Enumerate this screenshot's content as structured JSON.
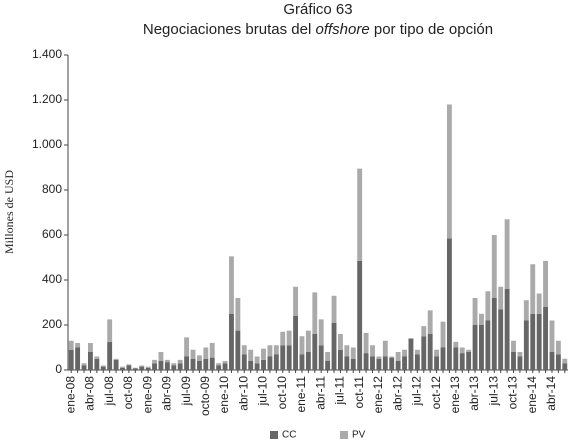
{
  "chart_data": {
    "type": "stacked_bar",
    "title": "Gráfico 63",
    "subtitle_parts": [
      "Negociaciones brutas del ",
      "offshore",
      " por tipo de opción"
    ],
    "y_label": "Millones de USD",
    "categories": [
      "ene-08",
      null,
      null,
      "abr-08",
      null,
      null,
      "jul-08",
      null,
      null,
      "oct-08",
      null,
      null,
      "ene-09",
      null,
      null,
      "abr-09",
      null,
      null,
      "jul-09",
      null,
      null,
      "octo-09",
      null,
      null,
      "ene-10",
      null,
      null,
      "abr-10",
      null,
      null,
      "jul-10",
      null,
      null,
      "oct-10",
      null,
      null,
      "ene-11",
      null,
      null,
      "abr-11",
      null,
      null,
      "jul-11",
      null,
      null,
      "oct-11",
      null,
      null,
      "ene-12",
      null,
      null,
      "abr-12",
      null,
      null,
      "jul-12",
      null,
      null,
      "oct-12",
      null,
      null,
      "ene-13",
      null,
      null,
      "abr-13",
      null,
      null,
      "jul-13",
      null,
      null,
      "oct-13",
      null,
      null,
      "ene-14",
      null,
      null,
      "abr-14",
      null,
      null
    ],
    "series": [
      {
        "name": "CC",
        "color": "#666666",
        "values": [
          90,
          100,
          20,
          80,
          50,
          15,
          125,
          45,
          10,
          20,
          8,
          15,
          10,
          30,
          40,
          35,
          20,
          30,
          60,
          50,
          40,
          50,
          55,
          20,
          30,
          250,
          175,
          70,
          40,
          30,
          45,
          60,
          70,
          110,
          110,
          240,
          70,
          80,
          160,
          110,
          40,
          210,
          90,
          60,
          50,
          485,
          75,
          60,
          50,
          60,
          55,
          40,
          60,
          140,
          70,
          150,
          160,
          60,
          100,
          585,
          100,
          75,
          80,
          200,
          200,
          220,
          320,
          270,
          360,
          80,
          60,
          220,
          250,
          250,
          280,
          80,
          70,
          30
        ]
      },
      {
        "name": "PV",
        "color": "#aaaaaa",
        "values": [
          40,
          20,
          10,
          40,
          10,
          5,
          100,
          5,
          5,
          5,
          2,
          5,
          5,
          15,
          40,
          10,
          10,
          15,
          85,
          40,
          25,
          50,
          65,
          10,
          10,
          255,
          145,
          40,
          50,
          30,
          50,
          50,
          40,
          60,
          65,
          130,
          80,
          95,
          185,
          115,
          40,
          120,
          70,
          50,
          50,
          410,
          90,
          50,
          10,
          70,
          5,
          40,
          30,
          0,
          20,
          45,
          105,
          30,
          115,
          595,
          25,
          25,
          10,
          120,
          50,
          130,
          280,
          100,
          310,
          50,
          20,
          90,
          220,
          90,
          205,
          140,
          60,
          20
        ]
      }
    ],
    "ylim": [
      0,
      1400
    ],
    "yticks": [
      0,
      200,
      400,
      600,
      800,
      {
        "value": 1000,
        "label": "1.000"
      },
      {
        "value": 1200,
        "label": "1.200"
      },
      {
        "value": 1400,
        "label": "1.400"
      }
    ],
    "grid": false,
    "legend": "bottom"
  }
}
